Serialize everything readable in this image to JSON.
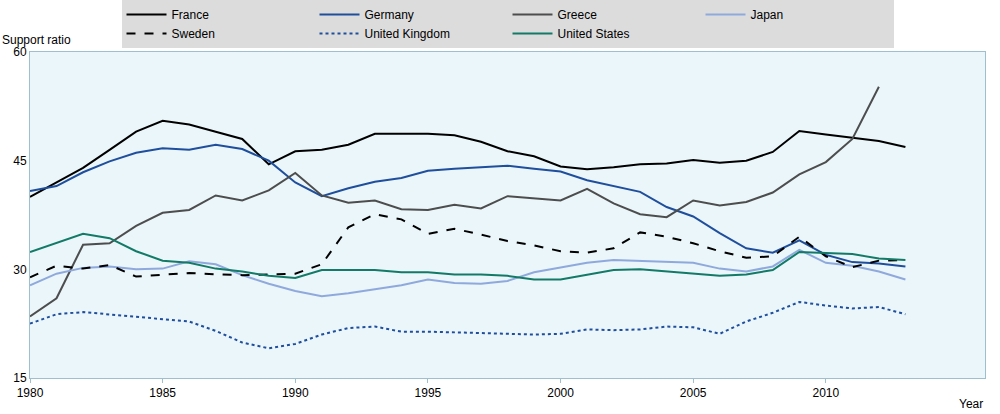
{
  "chart_data": {
    "type": "line",
    "xlabel": "Year",
    "ylabel": "Support ratio",
    "x": [
      1980,
      1981,
      1982,
      1983,
      1984,
      1985,
      1986,
      1987,
      1988,
      1989,
      1990,
      1991,
      1992,
      1993,
      1994,
      1995,
      1996,
      1997,
      1998,
      1999,
      2000,
      2001,
      2002,
      2003,
      2004,
      2005,
      2006,
      2007,
      2008,
      2009,
      2010,
      2011,
      2012,
      2013
    ],
    "xlim": [
      1980,
      2016
    ],
    "xticks": [
      1980,
      1985,
      1990,
      1995,
      2000,
      2005,
      2010
    ],
    "ylim": [
      15,
      60
    ],
    "yticks": [
      15,
      30,
      45,
      60
    ],
    "grid": false,
    "legend": "top",
    "series": [
      {
        "name": "France",
        "color": "#000000",
        "line_style": "solid",
        "values": [
          40,
          42,
          44,
          46.5,
          49,
          50.5,
          50,
          49,
          48,
          44.5,
          46.3,
          46.5,
          47.2,
          48.7,
          48.7,
          48.7,
          48.5,
          47.6,
          46.3,
          45.6,
          44.2,
          43.8,
          44.1,
          44.5,
          44.6,
          45.1,
          44.7,
          45,
          46.2,
          49.1,
          48.6,
          48.1,
          47.7,
          46.9
        ]
      },
      {
        "name": "Germany",
        "color": "#1f4e9c",
        "line_style": "solid",
        "values": [
          40.8,
          41.5,
          43.4,
          44.9,
          46.1,
          46.7,
          46.5,
          47.2,
          46.6,
          45,
          42,
          40.1,
          41.2,
          42.1,
          42.6,
          43.6,
          43.9,
          44.1,
          44.3,
          43.9,
          43.5,
          42.3,
          41.5,
          40.7,
          38.6,
          37.3,
          35,
          32.9,
          32.3,
          34,
          32,
          31,
          30.8,
          30.4
        ]
      },
      {
        "name": "Greece",
        "color": "#4d4d4d",
        "line_style": "solid",
        "values": [
          23.5,
          26,
          33.4,
          33.6,
          36,
          37.8,
          38.2,
          40.2,
          39.5,
          40.9,
          43.3,
          40.2,
          39.2,
          39.5,
          38.3,
          38.2,
          38.9,
          38.4,
          40.1,
          39.8,
          39.5,
          41.1,
          39.1,
          37.6,
          37.2,
          39.5,
          38.8,
          39.3,
          40.6,
          43.1,
          44.8,
          48,
          55.2,
          null
        ]
      },
      {
        "name": "Japan",
        "color": "#8fa9dc",
        "line_style": "solid",
        "values": [
          27.8,
          29.4,
          30.2,
          30.4,
          30,
          30.1,
          31.1,
          30.7,
          29.2,
          28,
          27,
          26.3,
          26.7,
          27.2,
          27.8,
          28.6,
          28.1,
          28,
          28.4,
          29.6,
          30.2,
          30.9,
          31.3,
          31.2,
          31,
          30.9,
          30.1,
          29.7,
          30.4,
          32.7,
          30.9,
          30.5,
          29.7,
          28.6
        ]
      },
      {
        "name": "Sweden",
        "color": "#000000",
        "line_style": "dash",
        "values": [
          28.9,
          30.5,
          30.1,
          30.6,
          29,
          29.3,
          29.5,
          29.3,
          29.2,
          29.3,
          29.4,
          30.7,
          35.8,
          37.6,
          36.9,
          34.9,
          35.6,
          34.8,
          33.9,
          33.3,
          32.5,
          32.3,
          32.9,
          35.1,
          34.5,
          33.6,
          32.5,
          31.6,
          31.8,
          34.5,
          31.8,
          30.3,
          31.2,
          31.3
        ]
      },
      {
        "name": "United Kingdom",
        "color": "#1f4e9c",
        "line_style": "dot",
        "values": [
          22.5,
          23.8,
          24.1,
          23.8,
          23.5,
          23.2,
          22.8,
          21.5,
          19.9,
          19.1,
          19.7,
          21,
          21.9,
          22.1,
          21.4,
          21.4,
          21.3,
          21.1,
          21,
          21,
          21.1,
          21.7,
          21.6,
          21.7,
          22.1,
          22,
          21.1,
          22.8,
          24,
          25.5,
          25,
          24.6,
          24.8,
          23.8
        ]
      },
      {
        "name": "United States",
        "color": "#127a66",
        "line_style": "solid",
        "values": [
          32.4,
          33.6,
          34.9,
          34.3,
          32.5,
          31.2,
          30.9,
          30.1,
          29.7,
          29.1,
          28.8,
          29.9,
          29.9,
          29.9,
          29.6,
          29.6,
          29.3,
          29.3,
          29.1,
          28.6,
          28.6,
          29.2,
          29.9,
          30,
          29.7,
          29.4,
          29.1,
          29.3,
          29.9,
          32.4,
          32.3,
          32.1,
          31.5,
          31.3
        ]
      }
    ]
  }
}
